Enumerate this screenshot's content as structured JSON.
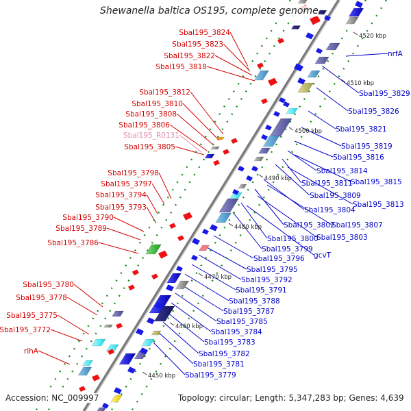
{
  "title": "Shewanella baltica OS195, complete genome",
  "footer": {
    "accession": "Accession: NC_009997",
    "topology": "Topology: circular; Length: 5,347,283 bp; Genes: 4,639"
  },
  "kbp_ticks": [
    "4520 kbp",
    "4510 kbp",
    "4500 kbp",
    "4490 kbp",
    "4480 kbp",
    "4470 kbp",
    "4460 kbp",
    "4450 kbp"
  ],
  "left_labels": [
    "Sbal195_3824",
    "Sbal195_3823",
    "Sbal195_3822",
    "Sbal195_3818",
    "Sbal195_3812",
    "Sbal195_3810",
    "Sbal195_3808",
    "Sbal195_3806",
    "Sbal195_R0131",
    "Sbal195_3805",
    "Sbal195_3798",
    "Sbal195_3797",
    "Sbal195_3794",
    "Sbal195_3793",
    "Sbal195_3790",
    "Sbal195_3789",
    "Sbal195_3786",
    "Sbal195_3780",
    "Sbal195_3778",
    "Sbal195_3775",
    "Sbal195_3772",
    "rihA"
  ],
  "right_labels": [
    "nrfA",
    "Sbal195_3829",
    "Sbal195_3826",
    "Sbal195_3821",
    "Sbal195_3819",
    "Sbal195_3816",
    "Sbal195_3814",
    "Sbal195_3815",
    "Sbal195_3811",
    "Sbal195_3809",
    "Sbal195_3813",
    "Sbal195_3804",
    "Sbal195_3802",
    "Sbal195_3807",
    "Sbal195_3803",
    "Sbal195_3800",
    "Sbal195_3799",
    "gcvT",
    "Sbal195_3796",
    "Sbal195_3795",
    "Sbal195_3792",
    "Sbal195_3791",
    "Sbal195_3788",
    "Sbal195_3787",
    "Sbal195_3785",
    "Sbal195_3784",
    "Sbal195_3783",
    "Sbal195_3782",
    "Sbal195_3781",
    "Sbal195_3779"
  ],
  "colors": {
    "backbone": "#777777",
    "forward_label": "#0000c8",
    "reverse_label": "#d40000",
    "rna_label": "#e58ab4",
    "forward_gene": "#1a1ae6",
    "reverse_gene": "#ee1111",
    "gc_dots": "#1a8c1a"
  }
}
